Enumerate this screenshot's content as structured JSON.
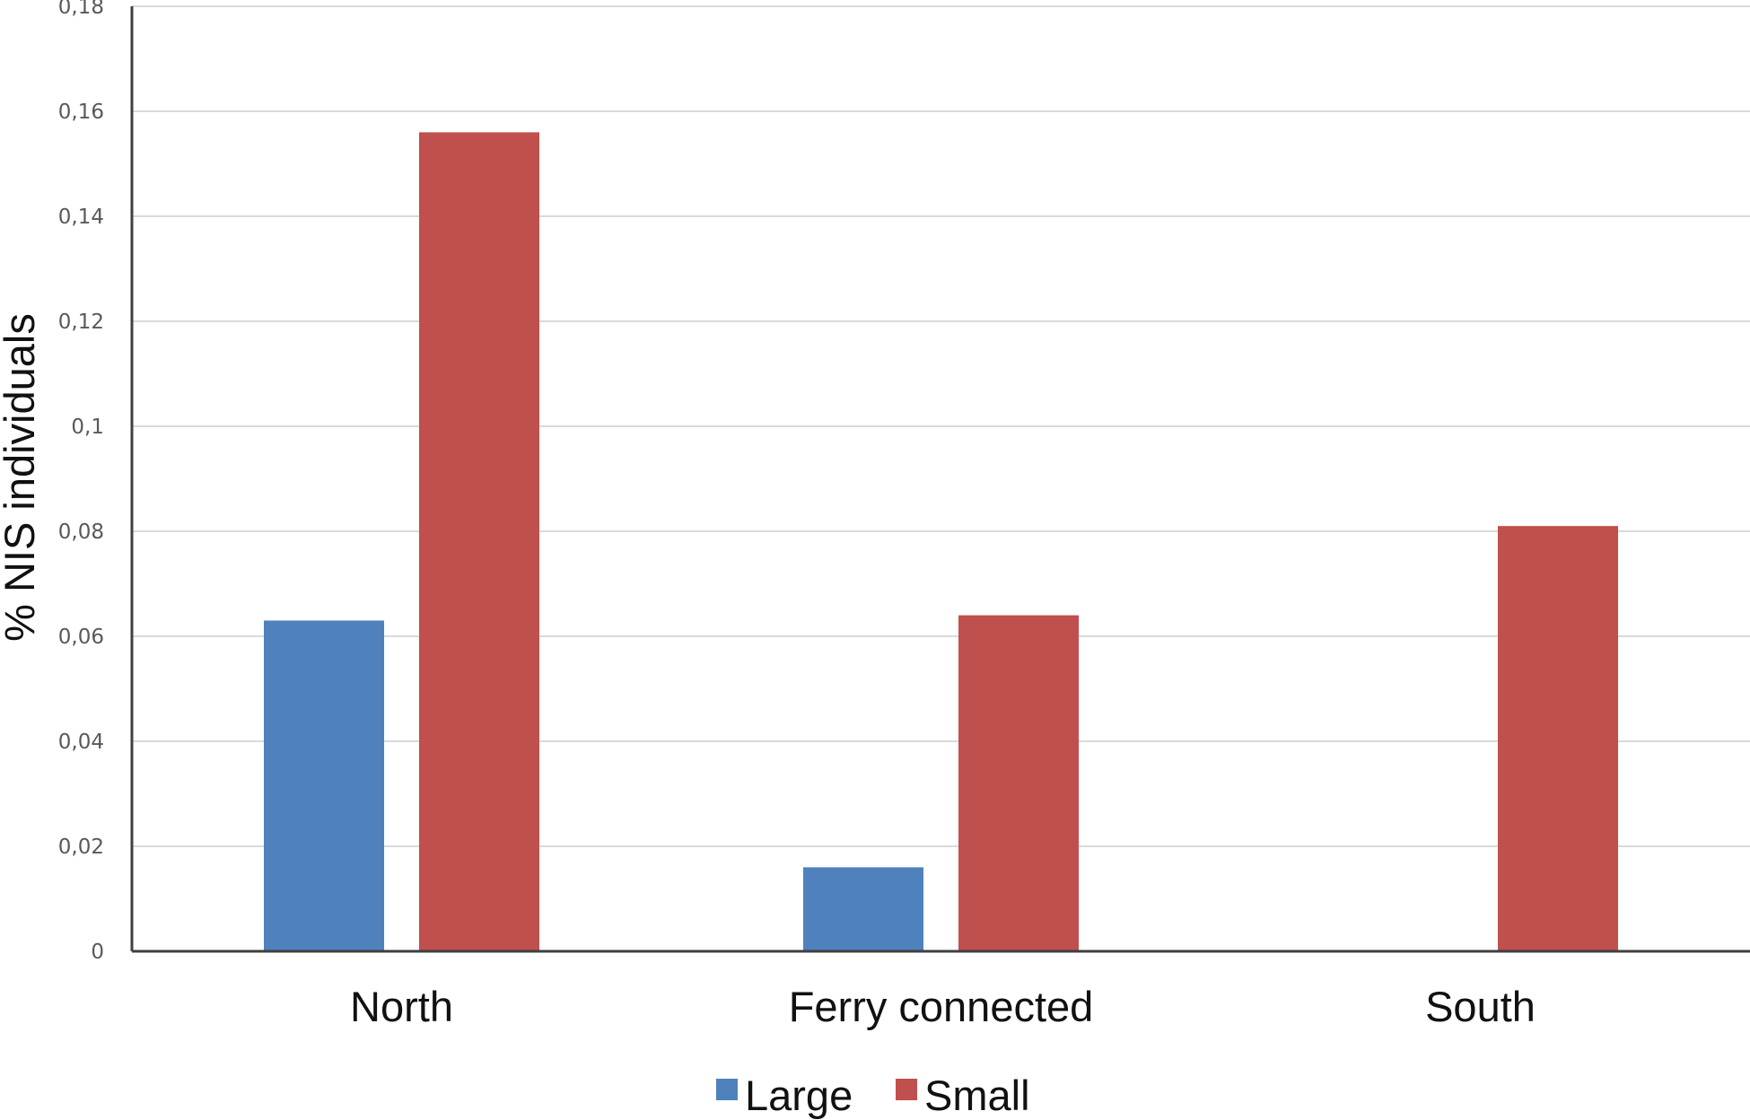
{
  "chart_data": {
    "type": "bar",
    "title": "",
    "xlabel": "",
    "ylabel": "% NIS individuals",
    "categories": [
      "North",
      "Ferry connected",
      "South"
    ],
    "series": [
      {
        "name": "Large",
        "color": "#4F81BD",
        "values": [
          0.063,
          0.016,
          0
        ]
      },
      {
        "name": "Small",
        "color": "#C0504D",
        "values": [
          0.156,
          0.064,
          0.081
        ]
      }
    ],
    "ylim": [
      0,
      0.18
    ],
    "yticks": [
      0,
      0.02,
      0.04,
      0.06,
      0.08,
      0.1,
      0.12,
      0.14,
      0.16,
      0.18
    ],
    "ytick_labels": [
      "0",
      "0,02",
      "0,04",
      "0,06",
      "0,08",
      "0,1",
      "0,12",
      "0,14",
      "0,16",
      "0,18"
    ],
    "grid": true,
    "legend_position": "bottom-center",
    "gridline_color": "#D9D9D9",
    "axis_color": "#404040"
  }
}
